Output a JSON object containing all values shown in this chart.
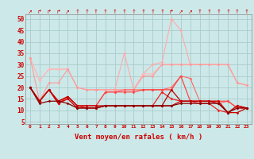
{
  "xlabel": "Vent moyen/en rafales ( km/h )",
  "background_color": "#cce8e8",
  "grid_color": "#aacccc",
  "x": [
    0,
    1,
    2,
    3,
    4,
    5,
    6,
    7,
    8,
    9,
    10,
    11,
    12,
    13,
    14,
    15,
    16,
    17,
    18,
    19,
    20,
    21,
    22,
    23
  ],
  "ylim": [
    4,
    52
  ],
  "yticks": [
    5,
    10,
    15,
    20,
    25,
    30,
    35,
    40,
    45,
    50
  ],
  "lines": [
    {
      "y": [
        33,
        23,
        28,
        28,
        28,
        20,
        19,
        19,
        19,
        19,
        35,
        19,
        26,
        30,
        31,
        50,
        45,
        30,
        30,
        30,
        30,
        30,
        22,
        21
      ],
      "color": "#ffaaaa",
      "lw": 0.8,
      "marker": "D",
      "ms": 1.5,
      "zorder": 2
    },
    {
      "y": [
        33,
        23,
        28,
        28,
        28,
        20,
        19,
        19,
        19,
        19,
        19,
        19,
        26,
        26,
        30,
        30,
        30,
        30,
        30,
        30,
        30,
        30,
        22,
        21
      ],
      "color": "#ffbbbb",
      "lw": 0.8,
      "marker": "D",
      "ms": 1.5,
      "zorder": 2
    },
    {
      "y": [
        33,
        14,
        22,
        22,
        28,
        20,
        19,
        19,
        19,
        19,
        19,
        19,
        25,
        25,
        30,
        30,
        30,
        30,
        30,
        30,
        30,
        30,
        22,
        21
      ],
      "color": "#ff9999",
      "lw": 0.8,
      "marker": "D",
      "ms": 1.5,
      "zorder": 2
    },
    {
      "y": [
        20,
        14,
        19,
        14,
        16,
        12,
        12,
        12,
        18,
        18,
        19,
        19,
        19,
        19,
        19,
        20,
        25,
        24,
        14,
        14,
        13,
        14,
        11,
        11
      ],
      "color": "#ff6666",
      "lw": 0.8,
      "marker": "D",
      "ms": 1.5,
      "zorder": 3
    },
    {
      "y": [
        20,
        14,
        19,
        13,
        16,
        12,
        12,
        12,
        18,
        18,
        18,
        18,
        19,
        19,
        19,
        19,
        25,
        14,
        14,
        14,
        14,
        14,
        11,
        11
      ],
      "color": "#ff4444",
      "lw": 0.9,
      "marker": "D",
      "ms": 1.5,
      "zorder": 3
    },
    {
      "y": [
        20,
        14,
        19,
        13,
        16,
        12,
        11,
        11,
        12,
        12,
        12,
        12,
        12,
        12,
        18,
        15,
        14,
        14,
        13,
        13,
        10,
        9,
        12,
        11
      ],
      "color": "#ee2222",
      "lw": 0.9,
      "marker": "D",
      "ms": 1.5,
      "zorder": 3
    },
    {
      "y": [
        20,
        14,
        19,
        13,
        15,
        11,
        11,
        11,
        12,
        12,
        12,
        12,
        12,
        12,
        12,
        12,
        14,
        14,
        14,
        14,
        14,
        9,
        9,
        11
      ],
      "color": "#cc0000",
      "lw": 0.9,
      "marker": "D",
      "ms": 1.5,
      "zorder": 4
    },
    {
      "y": [
        20,
        14,
        19,
        14,
        16,
        12,
        12,
        12,
        12,
        12,
        12,
        12,
        12,
        12,
        12,
        19,
        14,
        14,
        14,
        14,
        13,
        9,
        12,
        11
      ],
      "color": "#bb0000",
      "lw": 0.9,
      "marker": "D",
      "ms": 1.5,
      "zorder": 4
    },
    {
      "y": [
        20,
        13,
        14,
        14,
        13,
        11,
        11,
        11,
        12,
        12,
        12,
        12,
        12,
        12,
        12,
        12,
        13,
        13,
        13,
        13,
        13,
        9,
        11,
        11
      ],
      "color": "#880000",
      "lw": 0.9,
      "marker": "D",
      "ms": 1.5,
      "zorder": 4
    }
  ],
  "arrow_chars": [
    "↗",
    "↱",
    "↱",
    "↱",
    "↗",
    "↑",
    "↑",
    "↑",
    "↑",
    "↑",
    "↑",
    "↑",
    "↑",
    "↑",
    "↑",
    "↱",
    "↗",
    "↗",
    "↑",
    "↑",
    "↑",
    "↑",
    "↑",
    "↑"
  ]
}
